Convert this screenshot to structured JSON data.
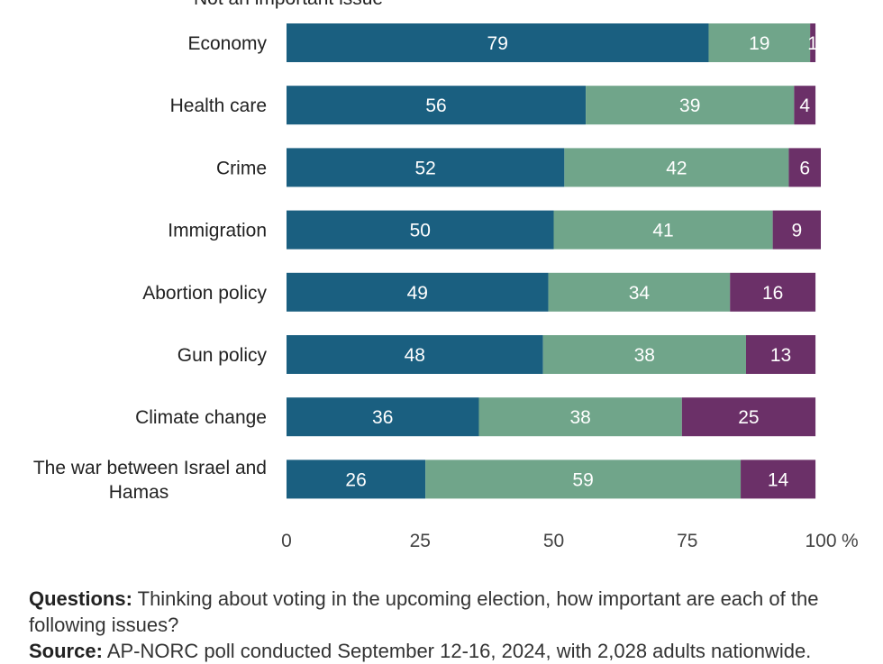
{
  "legend_partial_text": "Not an important issue",
  "chart_data": {
    "type": "bar",
    "orientation": "horizontal",
    "stacked": true,
    "categories": [
      "Economy",
      "Health care",
      "Crime",
      "Immigration",
      "Abortion policy",
      "Gun policy",
      "Climate change",
      "The war between Israel and Hamas"
    ],
    "series": [
      {
        "color": "#1a5f80",
        "values": [
          79,
          56,
          52,
          50,
          49,
          48,
          36,
          26
        ]
      },
      {
        "color": "#70a58a",
        "values": [
          19,
          39,
          42,
          41,
          34,
          38,
          38,
          59
        ]
      },
      {
        "color": "#6b3068",
        "values": [
          1,
          4,
          6,
          9,
          16,
          13,
          25,
          14
        ]
      }
    ],
    "xticks": [
      "0",
      "25",
      "50",
      "75",
      "100"
    ],
    "xtick_suffix": "%",
    "xlim": [
      0,
      100
    ],
    "grid": false
  },
  "footnote": {
    "questions_label": "Questions:",
    "questions_text": "Thinking about voting in the upcoming election, how important are each of the following issues?",
    "source_label": "Source:",
    "source_text": "AP-NORC poll conducted September 12-16, 2024, with 2,028 adults nationwide."
  }
}
